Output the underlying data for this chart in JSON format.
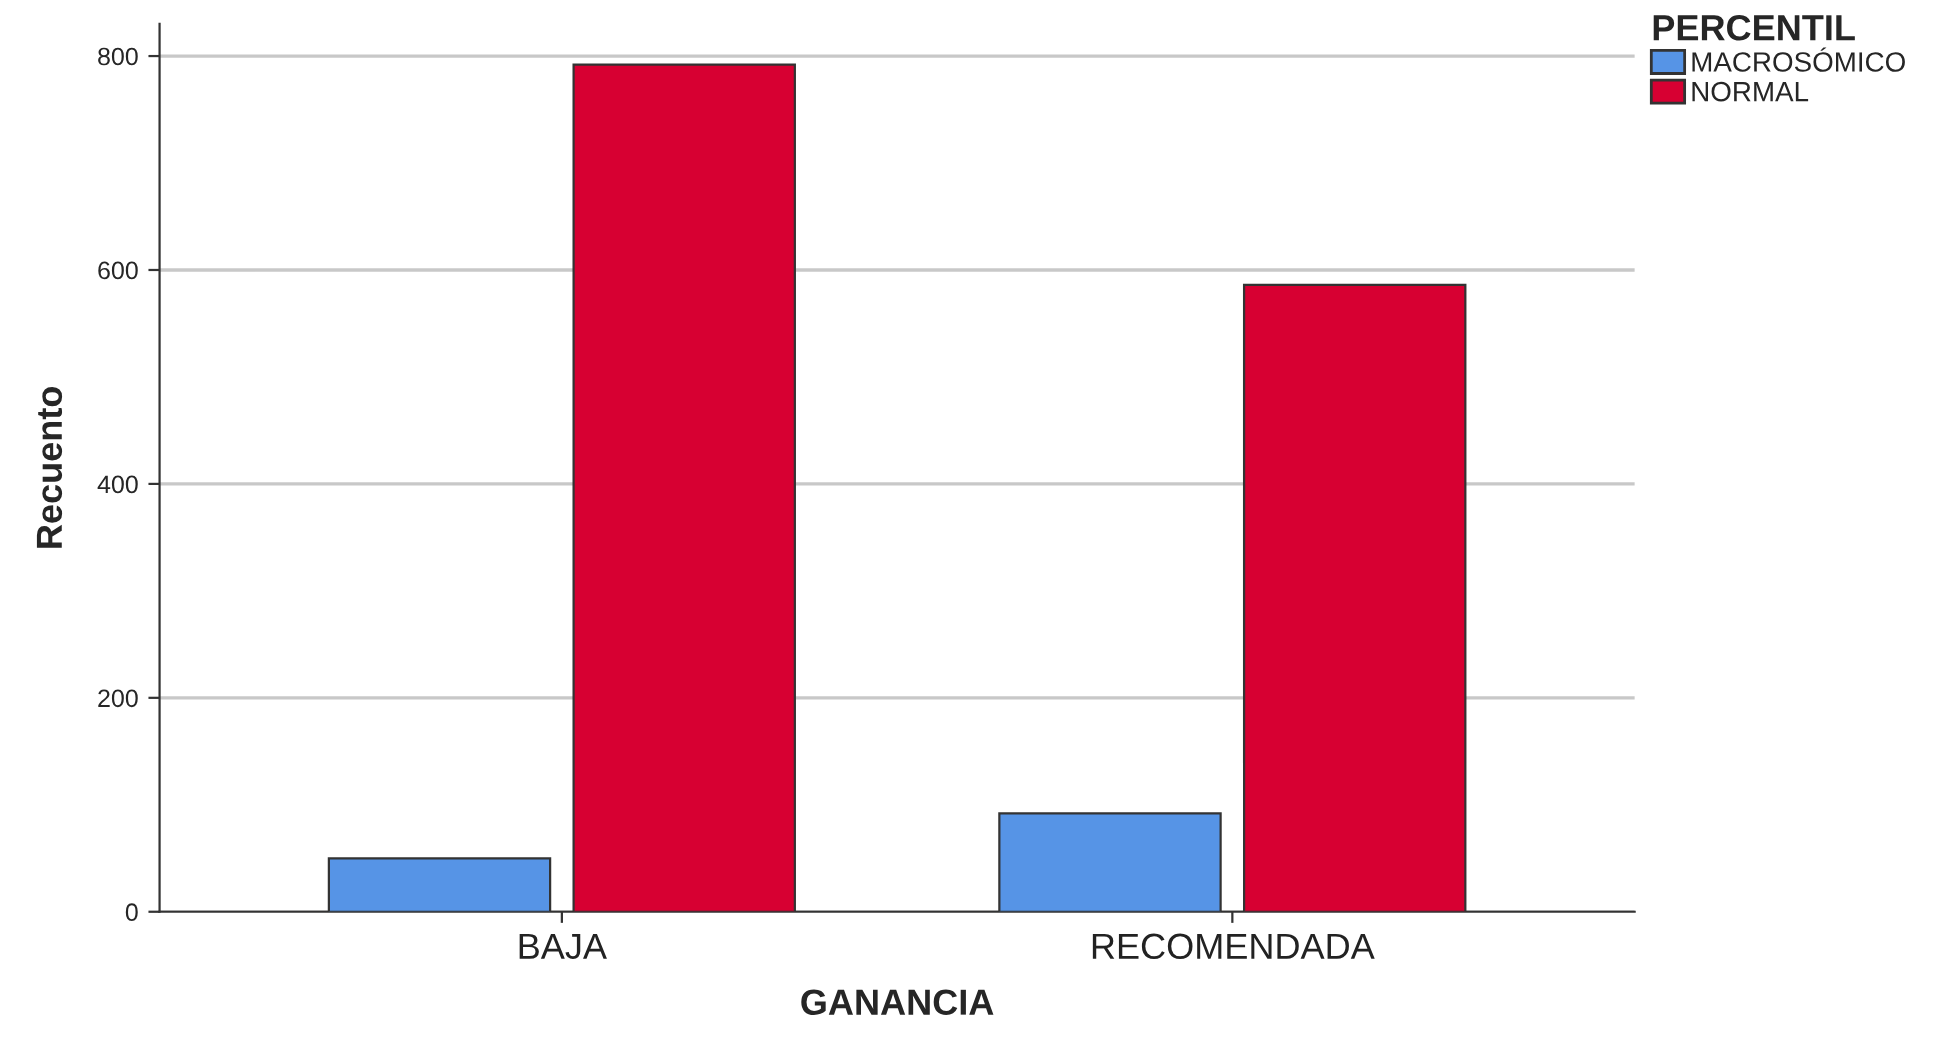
{
  "chart_data": {
    "type": "bar",
    "xlabel": "GANANCIA",
    "ylabel": "Recuento",
    "legend_title": "PERCENTIL",
    "categories": [
      "BAJA",
      "RECOMENDADA"
    ],
    "series": [
      {
        "name": "MACROSÓMICO",
        "color": "#5694e6",
        "values": [
          50,
          92
        ]
      },
      {
        "name": "NORMAL",
        "color": "#d70032",
        "values": [
          792,
          586
        ]
      }
    ],
    "ylim": [
      0,
      830
    ],
    "yticks": [
      0,
      200,
      400,
      600,
      800
    ],
    "grid": "y",
    "legend": "top right"
  }
}
